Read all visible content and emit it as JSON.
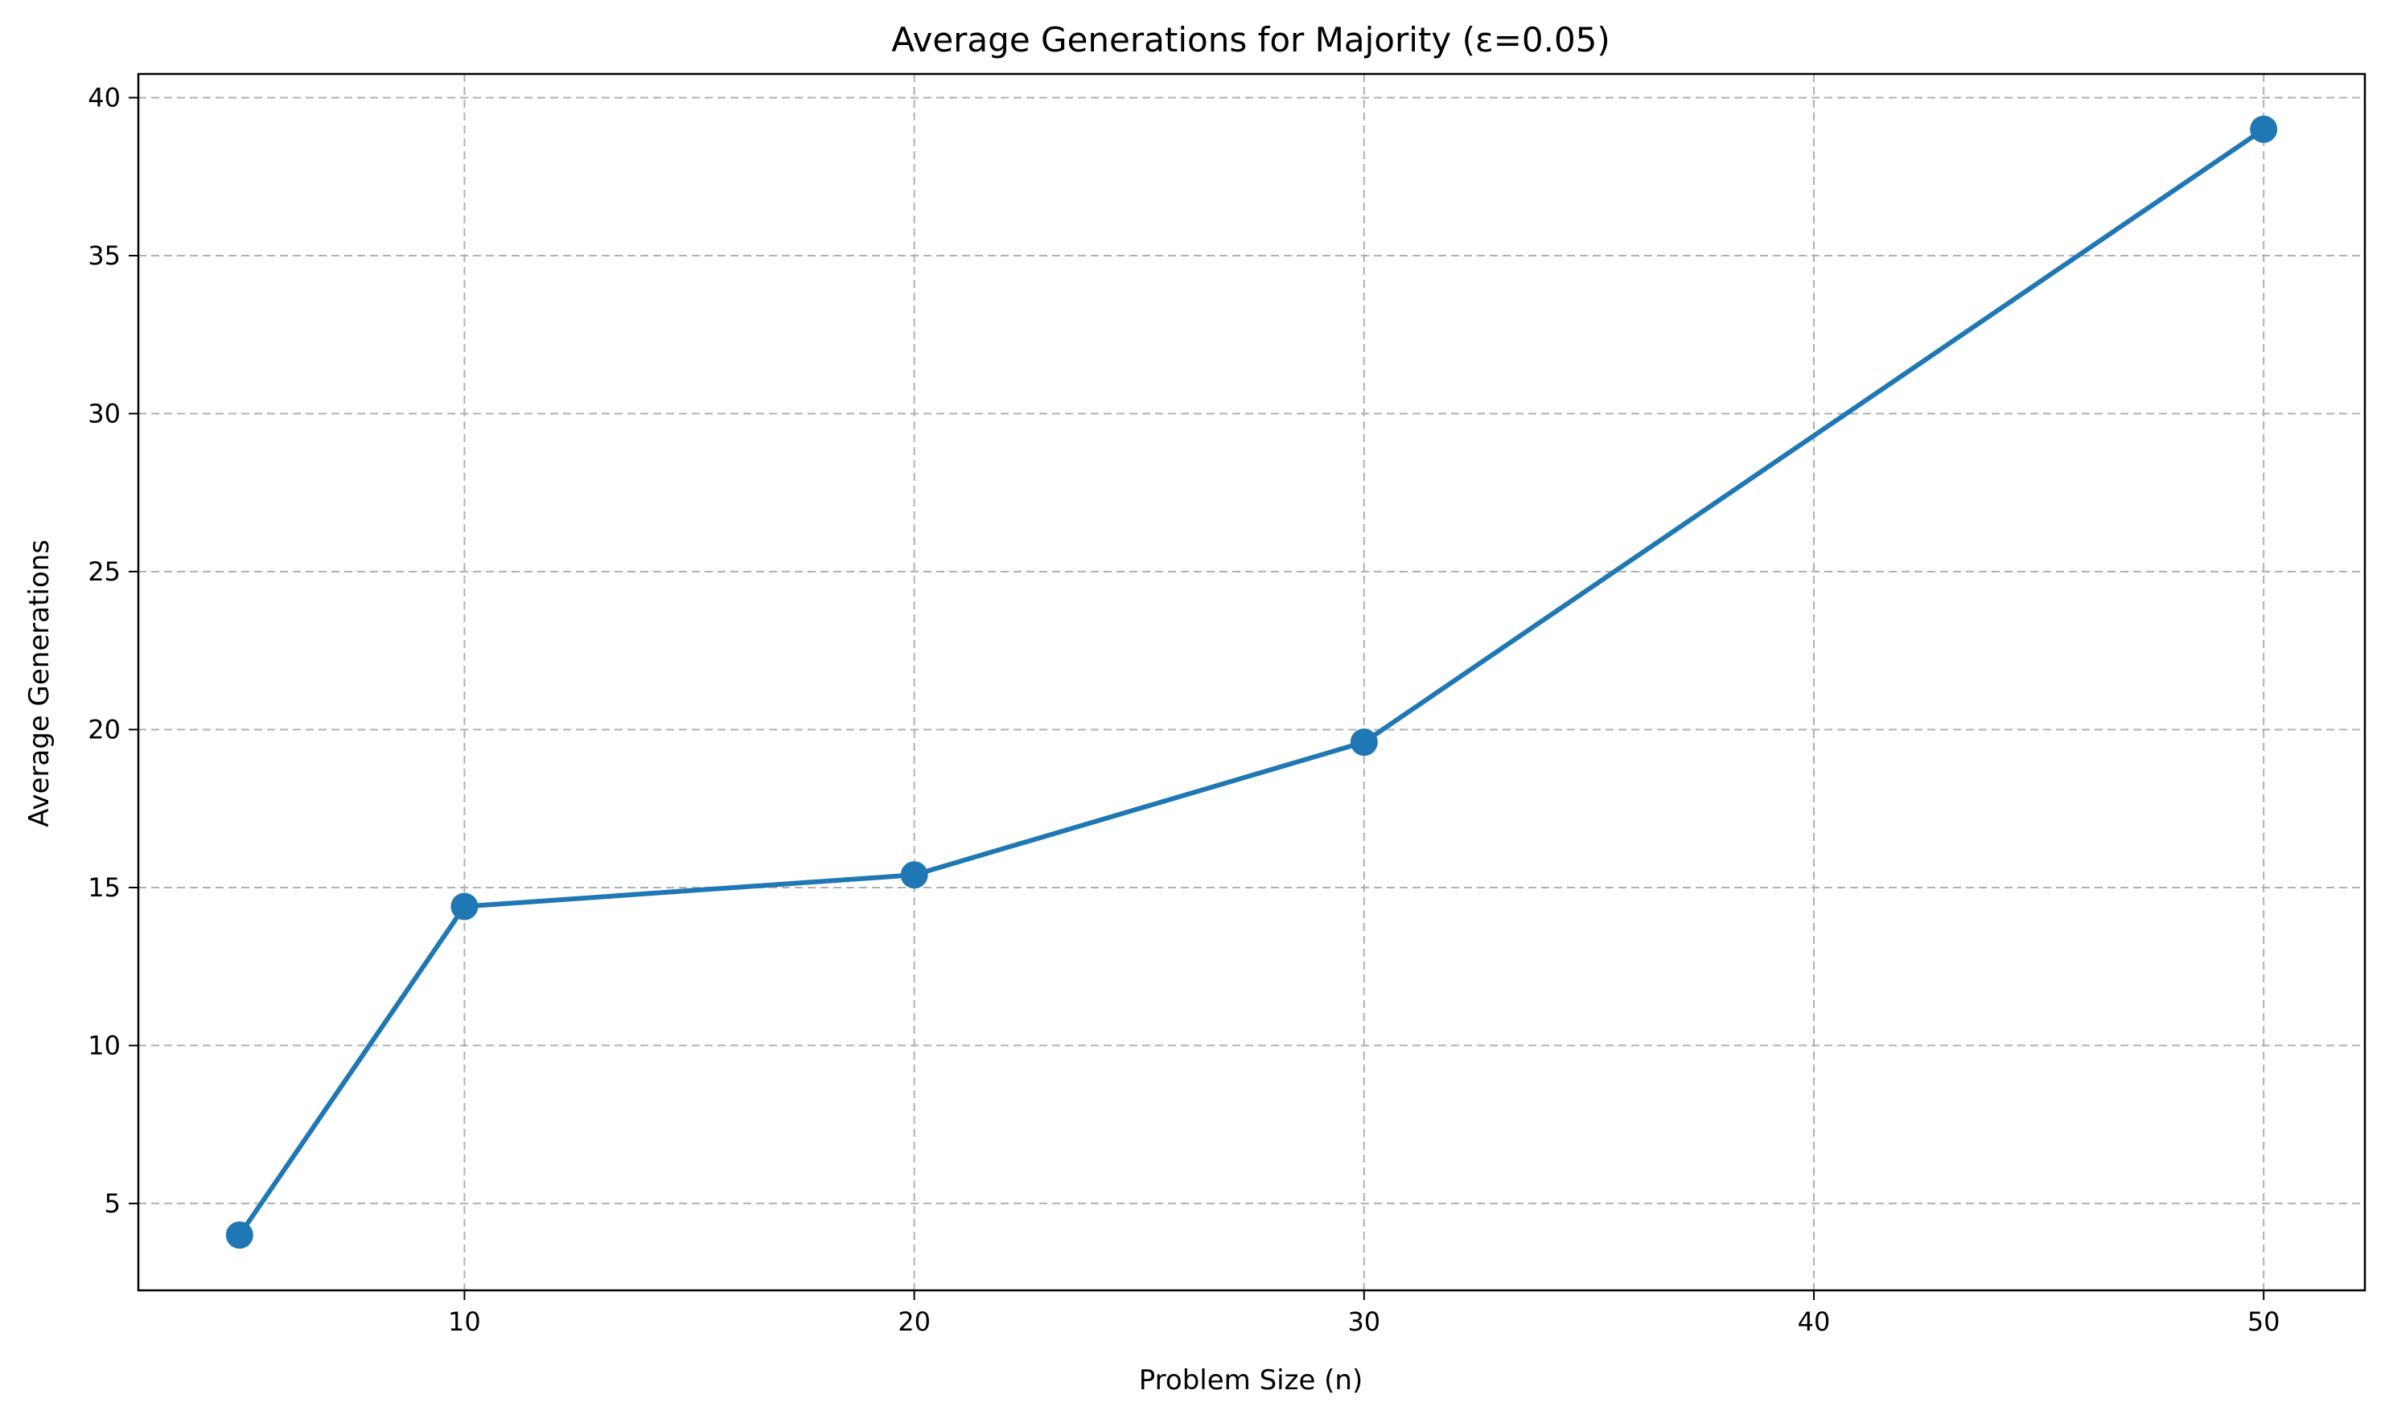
{
  "chart_data": {
    "type": "line",
    "title": "Average Generations for Majority (ε=0.05)",
    "xlabel": "Problem Size (n)",
    "ylabel": "Average Generations",
    "xlim": [
      2.75,
      52.25
    ],
    "ylim": [
      2.25,
      40.75
    ],
    "x_ticks": [
      10,
      20,
      30,
      40,
      50
    ],
    "y_ticks": [
      5,
      10,
      15,
      20,
      25,
      30,
      35,
      40
    ],
    "grid": true,
    "legend": "none",
    "series": [
      {
        "color": "#1f77b4",
        "marker": "circle",
        "x": [
          5,
          10,
          20,
          30,
          50
        ],
        "y": [
          4.0,
          14.4,
          15.4,
          19.6,
          39.0
        ]
      }
    ]
  }
}
